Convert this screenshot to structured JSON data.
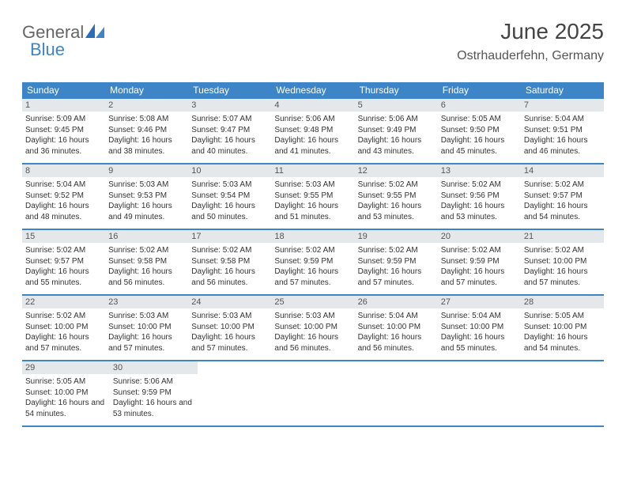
{
  "brand": {
    "part1": "General",
    "part2": "Blue"
  },
  "title": "June 2025",
  "location": "Ostrhauderfehn, Germany",
  "colors": {
    "accent": "#3d85c6",
    "header_text": "#ffffff",
    "daybar_bg": "#e5e8eb",
    "body_text": "#333333",
    "title_text": "#444444"
  },
  "typography": {
    "title_fontsize": 28,
    "location_fontsize": 16,
    "weekday_fontsize": 12,
    "daynum_fontsize": 11,
    "body_fontsize": 10
  },
  "weekdays": [
    "Sunday",
    "Monday",
    "Tuesday",
    "Wednesday",
    "Thursday",
    "Friday",
    "Saturday"
  ],
  "weeks": [
    [
      {
        "n": "1",
        "sr": "5:09 AM",
        "ss": "9:45 PM",
        "dl": "16 hours and 36 minutes."
      },
      {
        "n": "2",
        "sr": "5:08 AM",
        "ss": "9:46 PM",
        "dl": "16 hours and 38 minutes."
      },
      {
        "n": "3",
        "sr": "5:07 AM",
        "ss": "9:47 PM",
        "dl": "16 hours and 40 minutes."
      },
      {
        "n": "4",
        "sr": "5:06 AM",
        "ss": "9:48 PM",
        "dl": "16 hours and 41 minutes."
      },
      {
        "n": "5",
        "sr": "5:06 AM",
        "ss": "9:49 PM",
        "dl": "16 hours and 43 minutes."
      },
      {
        "n": "6",
        "sr": "5:05 AM",
        "ss": "9:50 PM",
        "dl": "16 hours and 45 minutes."
      },
      {
        "n": "7",
        "sr": "5:04 AM",
        "ss": "9:51 PM",
        "dl": "16 hours and 46 minutes."
      }
    ],
    [
      {
        "n": "8",
        "sr": "5:04 AM",
        "ss": "9:52 PM",
        "dl": "16 hours and 48 minutes."
      },
      {
        "n": "9",
        "sr": "5:03 AM",
        "ss": "9:53 PM",
        "dl": "16 hours and 49 minutes."
      },
      {
        "n": "10",
        "sr": "5:03 AM",
        "ss": "9:54 PM",
        "dl": "16 hours and 50 minutes."
      },
      {
        "n": "11",
        "sr": "5:03 AM",
        "ss": "9:55 PM",
        "dl": "16 hours and 51 minutes."
      },
      {
        "n": "12",
        "sr": "5:02 AM",
        "ss": "9:55 PM",
        "dl": "16 hours and 53 minutes."
      },
      {
        "n": "13",
        "sr": "5:02 AM",
        "ss": "9:56 PM",
        "dl": "16 hours and 53 minutes."
      },
      {
        "n": "14",
        "sr": "5:02 AM",
        "ss": "9:57 PM",
        "dl": "16 hours and 54 minutes."
      }
    ],
    [
      {
        "n": "15",
        "sr": "5:02 AM",
        "ss": "9:57 PM",
        "dl": "16 hours and 55 minutes."
      },
      {
        "n": "16",
        "sr": "5:02 AM",
        "ss": "9:58 PM",
        "dl": "16 hours and 56 minutes."
      },
      {
        "n": "17",
        "sr": "5:02 AM",
        "ss": "9:58 PM",
        "dl": "16 hours and 56 minutes."
      },
      {
        "n": "18",
        "sr": "5:02 AM",
        "ss": "9:59 PM",
        "dl": "16 hours and 57 minutes."
      },
      {
        "n": "19",
        "sr": "5:02 AM",
        "ss": "9:59 PM",
        "dl": "16 hours and 57 minutes."
      },
      {
        "n": "20",
        "sr": "5:02 AM",
        "ss": "9:59 PM",
        "dl": "16 hours and 57 minutes."
      },
      {
        "n": "21",
        "sr": "5:02 AM",
        "ss": "10:00 PM",
        "dl": "16 hours and 57 minutes."
      }
    ],
    [
      {
        "n": "22",
        "sr": "5:02 AM",
        "ss": "10:00 PM",
        "dl": "16 hours and 57 minutes."
      },
      {
        "n": "23",
        "sr": "5:03 AM",
        "ss": "10:00 PM",
        "dl": "16 hours and 57 minutes."
      },
      {
        "n": "24",
        "sr": "5:03 AM",
        "ss": "10:00 PM",
        "dl": "16 hours and 57 minutes."
      },
      {
        "n": "25",
        "sr": "5:03 AM",
        "ss": "10:00 PM",
        "dl": "16 hours and 56 minutes."
      },
      {
        "n": "26",
        "sr": "5:04 AM",
        "ss": "10:00 PM",
        "dl": "16 hours and 56 minutes."
      },
      {
        "n": "27",
        "sr": "5:04 AM",
        "ss": "10:00 PM",
        "dl": "16 hours and 55 minutes."
      },
      {
        "n": "28",
        "sr": "5:05 AM",
        "ss": "10:00 PM",
        "dl": "16 hours and 54 minutes."
      }
    ],
    [
      {
        "n": "29",
        "sr": "5:05 AM",
        "ss": "10:00 PM",
        "dl": "16 hours and 54 minutes."
      },
      {
        "n": "30",
        "sr": "5:06 AM",
        "ss": "9:59 PM",
        "dl": "16 hours and 53 minutes."
      },
      null,
      null,
      null,
      null,
      null
    ]
  ],
  "labels": {
    "sunrise": "Sunrise:",
    "sunset": "Sunset:",
    "daylight": "Daylight:"
  }
}
